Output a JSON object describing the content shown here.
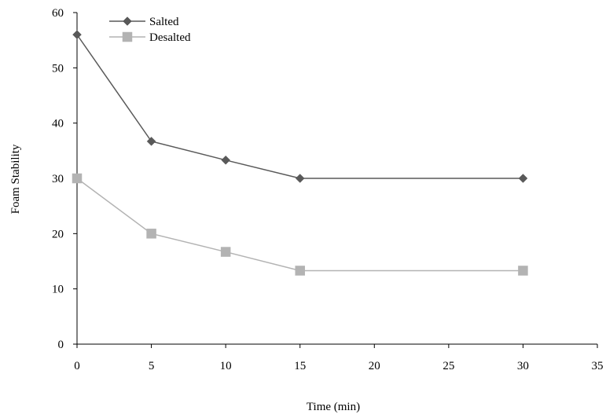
{
  "chart_data": {
    "type": "line",
    "title": "",
    "xlabel": "Time (min)",
    "ylabel": "Foam Stability",
    "xlim": [
      0,
      35
    ],
    "ylim": [
      0,
      60
    ],
    "x_ticks": [
      0,
      5,
      10,
      15,
      20,
      25,
      30,
      35
    ],
    "y_ticks": [
      0,
      10,
      20,
      30,
      40,
      50,
      60
    ],
    "grid": false,
    "legend_position": "top-left",
    "series": [
      {
        "name": "Salted",
        "marker": "diamond",
        "color": "#595959",
        "x": [
          0,
          5,
          10,
          15,
          30
        ],
        "y": [
          56,
          36.7,
          33.3,
          30,
          30
        ]
      },
      {
        "name": "Desalted",
        "marker": "square",
        "color": "#B3B3B3",
        "x": [
          0,
          5,
          10,
          15,
          30
        ],
        "y": [
          30,
          20,
          16.7,
          13.3,
          13.3
        ]
      }
    ]
  }
}
